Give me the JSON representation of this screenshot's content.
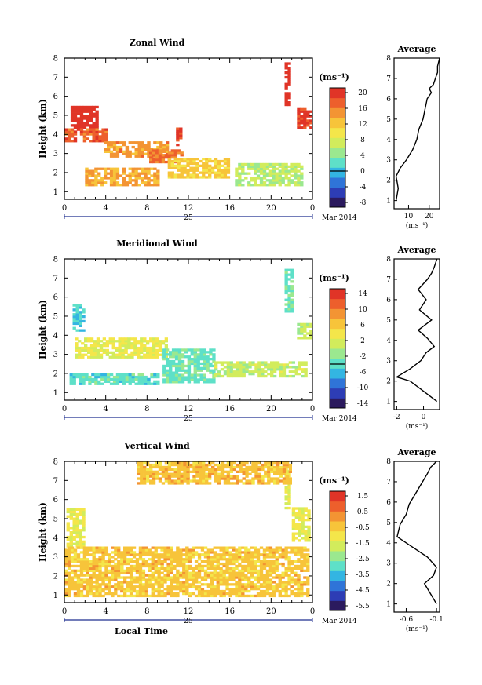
{
  "panels": [
    {
      "title": "Zonal Wind",
      "ylabel": "Height (km)",
      "yticks": [
        "1",
        "2",
        "3",
        "4",
        "5",
        "6",
        "7",
        "8"
      ],
      "xticks": [
        "0",
        "4",
        "8",
        "12",
        "16",
        "20",
        "0"
      ],
      "date_label": "25",
      "month_label": "Mar 2014",
      "unit_label": "(ms⁻¹)",
      "colorbar_ticks": [
        "20",
        "16",
        "12",
        "8",
        "4",
        "0",
        "-4",
        "-8"
      ],
      "colorbar_range": [
        -10,
        22
      ],
      "avg_title": "Average",
      "avg_xticks": [
        "10",
        "20"
      ],
      "avg_xunit": "(ms⁻¹)",
      "avg_xrange": [
        3,
        25
      ]
    },
    {
      "title": "Meridional Wind",
      "ylabel": "Height (km)",
      "yticks": [
        "1",
        "2",
        "3",
        "4",
        "5",
        "6",
        "7",
        "8"
      ],
      "xticks": [
        "0",
        "4",
        "8",
        "12",
        "16",
        "20",
        "0"
      ],
      "date_label": "25",
      "month_label": "Mar 2014",
      "unit_label": "(ms⁻¹)",
      "colorbar_ticks": [
        "14",
        "10",
        "6",
        "2",
        "-2",
        "-6",
        "-10",
        "-14"
      ],
      "colorbar_range": [
        -16,
        16
      ],
      "avg_title": "Average",
      "avg_xticks": [
        "-2",
        "0"
      ],
      "avg_xunit": "(ms⁻¹)",
      "avg_xrange": [
        -2.2,
        1.2
      ]
    },
    {
      "title": "Vertical Wind",
      "ylabel": "Height (km)",
      "yticks": [
        "1",
        "2",
        "3",
        "4",
        "5",
        "6",
        "7",
        "8"
      ],
      "xticks": [
        "0",
        "4",
        "8",
        "12",
        "16",
        "20",
        "0"
      ],
      "date_label": "25",
      "month_label": "Mar 2014",
      "xlabel": "Local Time",
      "unit_label": "(ms⁻¹)",
      "colorbar_ticks": [
        "1.5",
        "0.5",
        "-0.5",
        "-1.5",
        "-2.5",
        "-3.5",
        "-4.5",
        "-5.5"
      ],
      "colorbar_range": [
        -6,
        2
      ],
      "avg_title": "Average",
      "avg_xticks": [
        "-0.6",
        "-0.1"
      ],
      "avg_xunit": "(ms⁻¹)",
      "avg_xrange": [
        -0.8,
        -0.05
      ]
    }
  ],
  "chart_data": [
    {
      "type": "heatmap",
      "title": "Zonal Wind",
      "xlabel": "",
      "ylabel": "Height (km)",
      "xlim": [
        0,
        24
      ],
      "ylim": [
        0.6,
        8
      ],
      "colorbar_ticks": [
        20,
        16,
        12,
        8,
        4,
        0,
        -4,
        -8
      ],
      "regions": [
        {
          "x": [
            0.6,
            3.2
          ],
          "y": [
            4.3,
            5.5
          ],
          "value": 22
        },
        {
          "x": [
            0,
            4
          ],
          "y": [
            3.6,
            4.3
          ],
          "value": 18
        },
        {
          "x": [
            3.8,
            10
          ],
          "y": [
            2.8,
            3.6
          ],
          "value": 15
        },
        {
          "x": [
            8.2,
            11.5
          ],
          "y": [
            2.5,
            3.2
          ],
          "value": 17
        },
        {
          "x": [
            10.8,
            11.3
          ],
          "y": [
            3.4,
            4.3
          ],
          "value": 20
        },
        {
          "x": [
            2,
            9
          ],
          "y": [
            1.3,
            2.2
          ],
          "value": 14
        },
        {
          "x": [
            10,
            16
          ],
          "y": [
            1.7,
            2.7
          ],
          "value": 12
        },
        {
          "x": [
            16.5,
            23
          ],
          "y": [
            1.3,
            2.4
          ],
          "value": 6
        },
        {
          "x": [
            21.3,
            21.8
          ],
          "y": [
            5.5,
            7.7
          ],
          "value": 22
        },
        {
          "x": [
            22.5,
            23.8
          ],
          "y": [
            4.3,
            5.3
          ],
          "value": 20
        }
      ],
      "average_profile": {
        "x_label": "(ms⁻¹)",
        "x": [
          4,
          5,
          4,
          6,
          9,
          12,
          14,
          15,
          17,
          18,
          19,
          21,
          20,
          22,
          23,
          24,
          24,
          25
        ],
        "y": [
          1,
          1.6,
          2.2,
          2.6,
          3,
          3.5,
          4,
          4.5,
          5,
          5.5,
          6,
          6.3,
          6.5,
          6.7,
          7,
          7.3,
          7.6,
          8
        ]
      }
    },
    {
      "type": "heatmap",
      "title": "Meridional Wind",
      "xlabel": "",
      "ylabel": "Height (km)",
      "xlim": [
        0,
        24
      ],
      "ylim": [
        0.6,
        8
      ],
      "colorbar_ticks": [
        14,
        10,
        6,
        2,
        -2,
        -6,
        -10,
        -14
      ],
      "regions": [
        {
          "x": [
            0.8,
            1.8
          ],
          "y": [
            4.2,
            5.6
          ],
          "value": -5
        },
        {
          "x": [
            1,
            10
          ],
          "y": [
            2.8,
            3.8
          ],
          "value": 3
        },
        {
          "x": [
            9.5,
            14.5
          ],
          "y": [
            1.5,
            3.2
          ],
          "value": -3
        },
        {
          "x": [
            14.5,
            23.5
          ],
          "y": [
            1.8,
            2.6
          ],
          "value": 1
        },
        {
          "x": [
            0.5,
            9
          ],
          "y": [
            1.4,
            2
          ],
          "value": -4
        },
        {
          "x": [
            21.3,
            22.2
          ],
          "y": [
            5.2,
            7.4
          ],
          "value": -3
        },
        {
          "x": [
            22.5,
            23.8
          ],
          "y": [
            3.8,
            4.6
          ],
          "value": 1
        }
      ],
      "average_profile": {
        "x_label": "(ms⁻¹)",
        "x": [
          1,
          0,
          -1,
          -2,
          -1,
          -0.2,
          0.2,
          0.8,
          0.3,
          -0.4,
          0.6,
          -0.3,
          0.2,
          -0.4,
          0.3,
          0.6,
          0.8,
          1
        ],
        "y": [
          1,
          1.5,
          2,
          2.2,
          2.6,
          3,
          3.4,
          3.7,
          4.1,
          4.5,
          5,
          5.5,
          6,
          6.5,
          7,
          7.3,
          7.6,
          8
        ]
      }
    },
    {
      "type": "heatmap",
      "title": "Vertical Wind",
      "xlabel": "Local Time",
      "ylabel": "Height (km)",
      "xlim": [
        0,
        24
      ],
      "ylim": [
        0.6,
        8
      ],
      "colorbar_ticks": [
        1.5,
        0.5,
        -0.5,
        -1.5,
        -2.5,
        -3.5,
        -4.5,
        -5.5
      ],
      "regions": [
        {
          "x": [
            0.2,
            2
          ],
          "y": [
            3.5,
            5.5
          ],
          "value": -1.2
        },
        {
          "x": [
            0,
            23.5
          ],
          "y": [
            0.9,
            3.5
          ],
          "value": -0.4
        },
        {
          "x": [
            21.3,
            21.9
          ],
          "y": [
            5.5,
            7.9
          ],
          "value": -1.3
        },
        {
          "x": [
            22,
            23.7
          ],
          "y": [
            3.8,
            5.6
          ],
          "value": -1.2
        },
        {
          "x": [
            7,
            22
          ],
          "y": [
            6.8,
            7.9
          ],
          "value": -0.3
        }
      ],
      "average_profile": {
        "x_label": "(ms⁻¹)",
        "x": [
          -0.1,
          -0.2,
          -0.3,
          -0.15,
          -0.1,
          -0.25,
          -0.55,
          -0.75,
          -0.7,
          -0.6,
          -0.55,
          -0.45,
          -0.35,
          -0.25,
          -0.2,
          -0.1
        ],
        "y": [
          1,
          1.5,
          2,
          2.4,
          2.8,
          3.3,
          3.9,
          4.3,
          4.9,
          5.4,
          5.9,
          6.4,
          6.9,
          7.4,
          7.7,
          8
        ]
      }
    }
  ],
  "colors": {
    "colormap": [
      "#2b1a5e",
      "#2d3db5",
      "#2f74d8",
      "#33b5e2",
      "#5ee0c8",
      "#9be88f",
      "#d2ec5c",
      "#f4e64a",
      "#f7c43a",
      "#f39433",
      "#ed5f2c",
      "#e03427"
    ],
    "background": "#ffffff",
    "line": "#000000"
  }
}
